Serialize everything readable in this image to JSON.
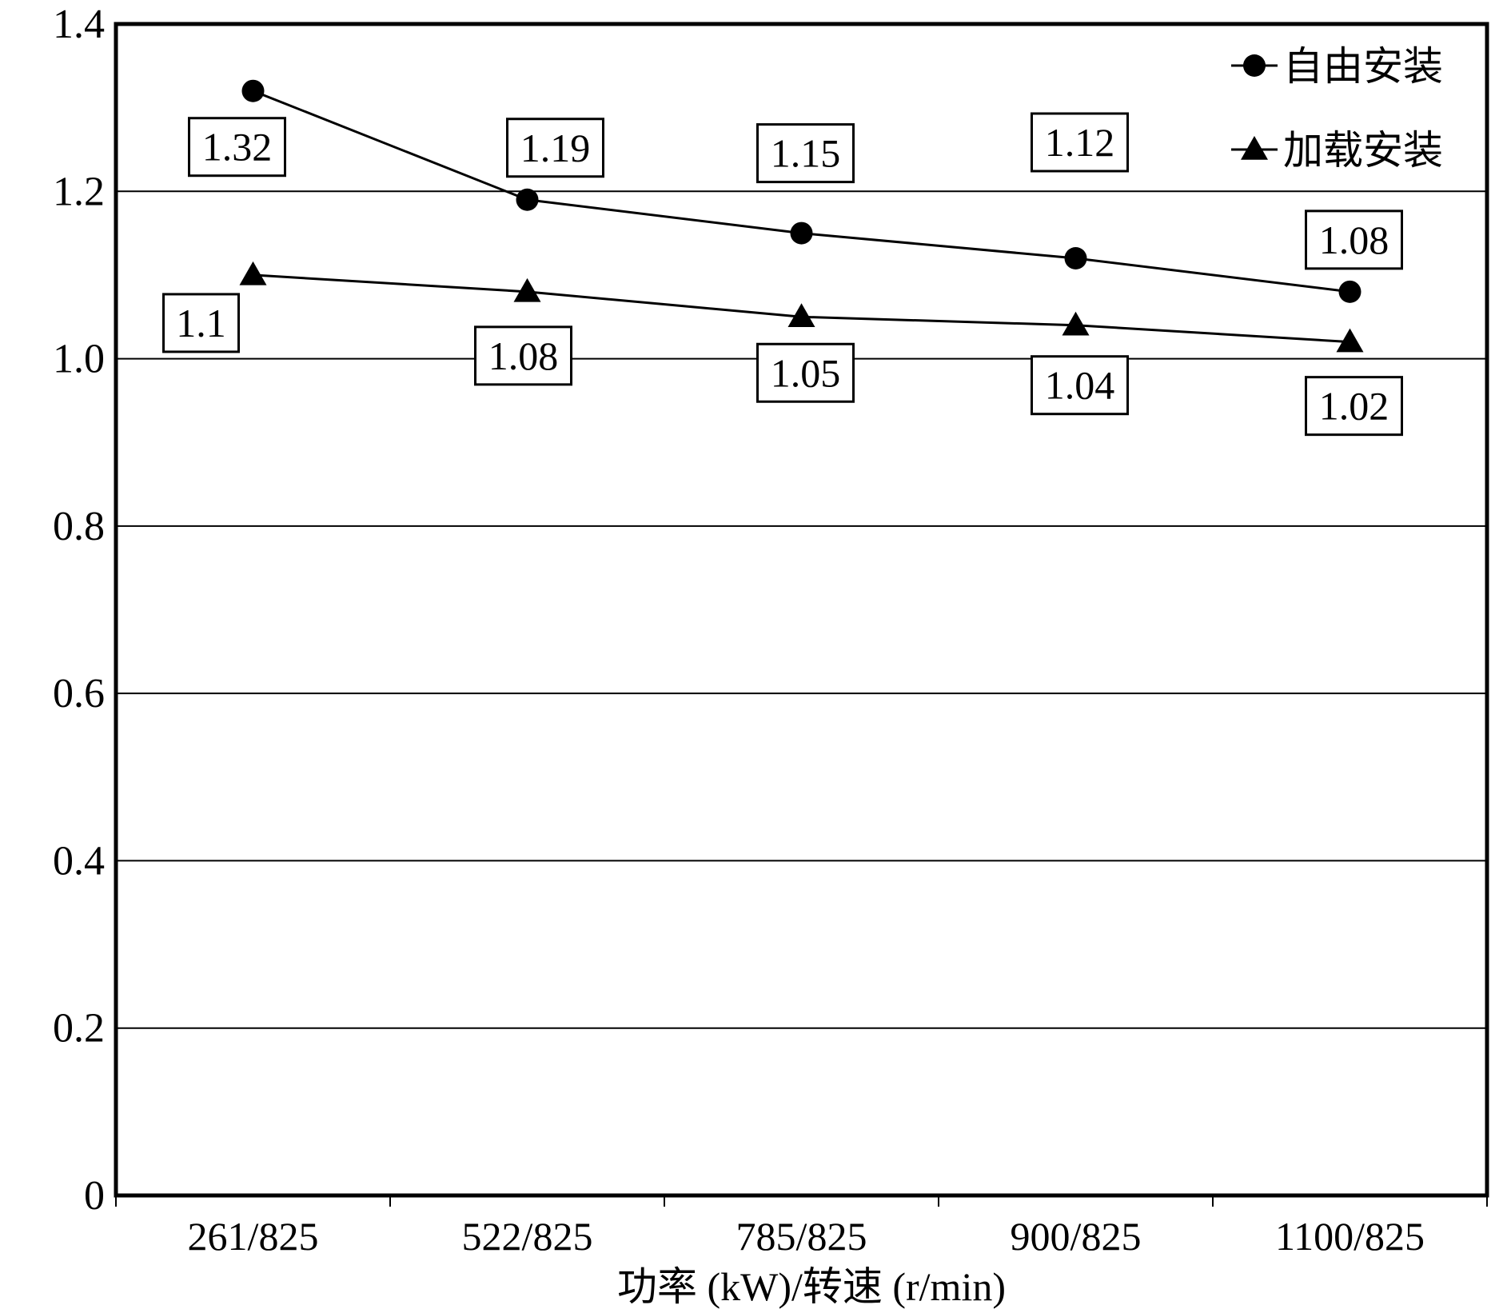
{
  "chart_data": {
    "type": "line",
    "title": "",
    "xlabel": "功率 (kW)/转速 (r/min)",
    "ylabel": "",
    "categories": [
      "261/825",
      "522/825",
      "785/825",
      "900/825",
      "1100/825"
    ],
    "y_ticks": [
      "0",
      "0.2",
      "0.4",
      "0.6",
      "0.8",
      "1.0",
      "1.2",
      "1.4"
    ],
    "ylim": [
      0,
      1.4
    ],
    "grid": true,
    "legend_position": "top-right",
    "series": [
      {
        "name": "自由安装",
        "marker": "circle",
        "values": [
          1.32,
          1.19,
          1.15,
          1.12,
          1.08
        ],
        "labels": [
          "1.32",
          "1.19",
          "1.15",
          "1.12",
          "1.08"
        ]
      },
      {
        "name": "加载安装",
        "marker": "triangle",
        "values": [
          1.1,
          1.08,
          1.05,
          1.04,
          1.02
        ],
        "labels": [
          "1.1",
          "1.08",
          "1.05",
          "1.04",
          "1.02"
        ]
      }
    ],
    "colors": {
      "line": "#000000",
      "grid": "#000000",
      "background": "#ffffff"
    }
  }
}
